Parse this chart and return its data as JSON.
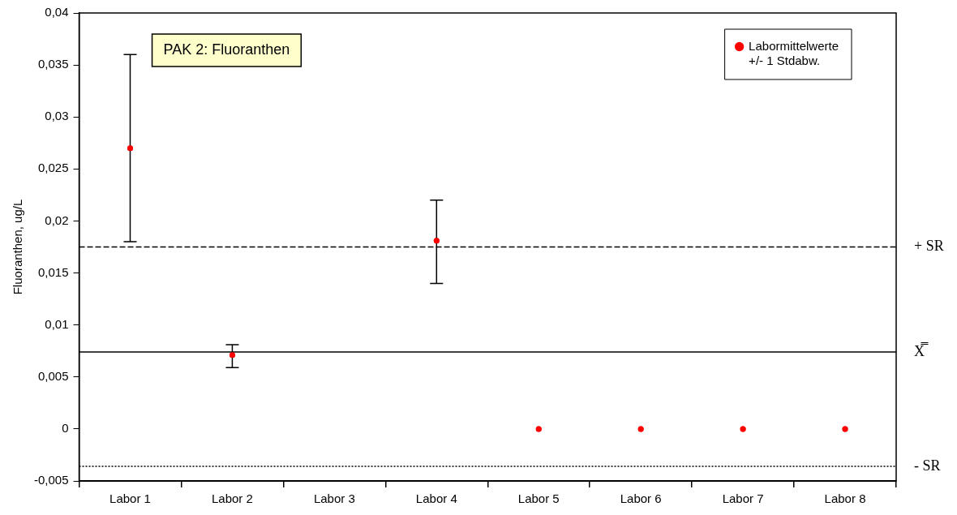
{
  "chart_data": {
    "type": "scatter",
    "title": "PAK 2: Fluoranthen",
    "ylabel": "Fluoranthen, ug/L",
    "categories": [
      "Labor 1",
      "Labor 2",
      "Labor 3",
      "Labor 4",
      "Labor 5",
      "Labor 6",
      "Labor 7",
      "Labor 8"
    ],
    "series": [
      {
        "name": "Labormittelwerte\n+/- 1 Stdabw.",
        "color": "#ff0000",
        "values": [
          0.027,
          0.0071,
          null,
          0.0181,
          0,
          0,
          0,
          0
        ],
        "errors": [
          [
            0.018,
            0.036
          ],
          [
            0.0059,
            0.0081
          ],
          null,
          [
            0.014,
            0.022
          ],
          null,
          null,
          null,
          null
        ]
      }
    ],
    "ylim": [
      -0.005,
      0.04
    ],
    "yticks": [
      {
        "value": -0.005,
        "label": "-0,005"
      },
      {
        "value": 0,
        "label": "0"
      },
      {
        "value": 0.005,
        "label": "0,005"
      },
      {
        "value": 0.01,
        "label": "0,01"
      },
      {
        "value": 0.015,
        "label": "0,015"
      },
      {
        "value": 0.02,
        "label": "0,02"
      },
      {
        "value": 0.025,
        "label": "0,025"
      },
      {
        "value": 0.03,
        "label": "0,03"
      },
      {
        "value": 0.035,
        "label": "0,035"
      },
      {
        "value": 0.04,
        "label": "0,04"
      }
    ],
    "ref_lines": [
      {
        "axis": "y",
        "value": 0.0175,
        "label": "+ SR",
        "line_style": "dashed",
        "color": "#000000"
      },
      {
        "axis": "y",
        "value": 0.0074,
        "label": "X̿",
        "line_style": "solid",
        "color": "#000000"
      },
      {
        "axis": "y",
        "value": -0.0036,
        "label": "- SR",
        "line_style": "dotted",
        "color": "#000000"
      }
    ],
    "legend": "top right",
    "marker": "circle"
  }
}
